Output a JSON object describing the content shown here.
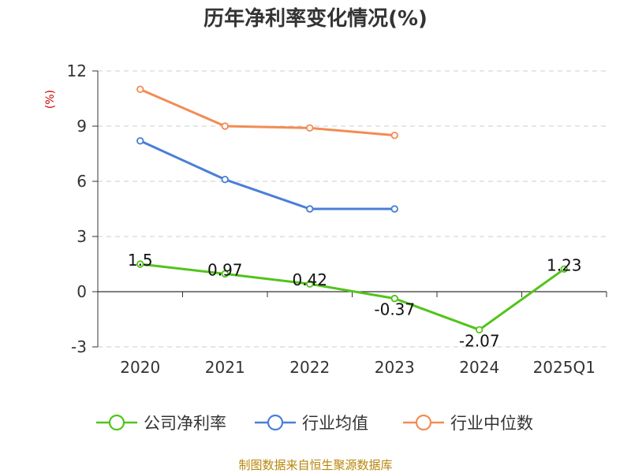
{
  "chart_data": {
    "type": "line",
    "title": "历年净利率变化情况(%)",
    "ylabel": "(%)",
    "xlabel": "",
    "categories": [
      "2020",
      "2021",
      "2022",
      "2023",
      "2024",
      "2025Q1"
    ],
    "ylim": [
      -3,
      12
    ],
    "yticks": [
      -3,
      0,
      3,
      6,
      9,
      12
    ],
    "grid": "horizontal-dashed",
    "legend_position": "bottom",
    "series": [
      {
        "name": "公司净利率",
        "color": "#52c41a",
        "values": [
          1.5,
          0.97,
          0.42,
          -0.37,
          -2.07,
          1.23
        ],
        "labels": [
          "1.5",
          "0.97",
          "0.42",
          "-0.37",
          "-2.07",
          "1.23"
        ]
      },
      {
        "name": "行业均值",
        "color": "#4a7fd6",
        "values": [
          8.2,
          6.1,
          4.5,
          4.5,
          null,
          null
        ]
      },
      {
        "name": "行业中位数",
        "color": "#f28c55",
        "values": [
          11.0,
          9.0,
          8.9,
          8.5,
          null,
          null
        ]
      }
    ]
  },
  "source": "制图数据来自恒生聚源数据库"
}
